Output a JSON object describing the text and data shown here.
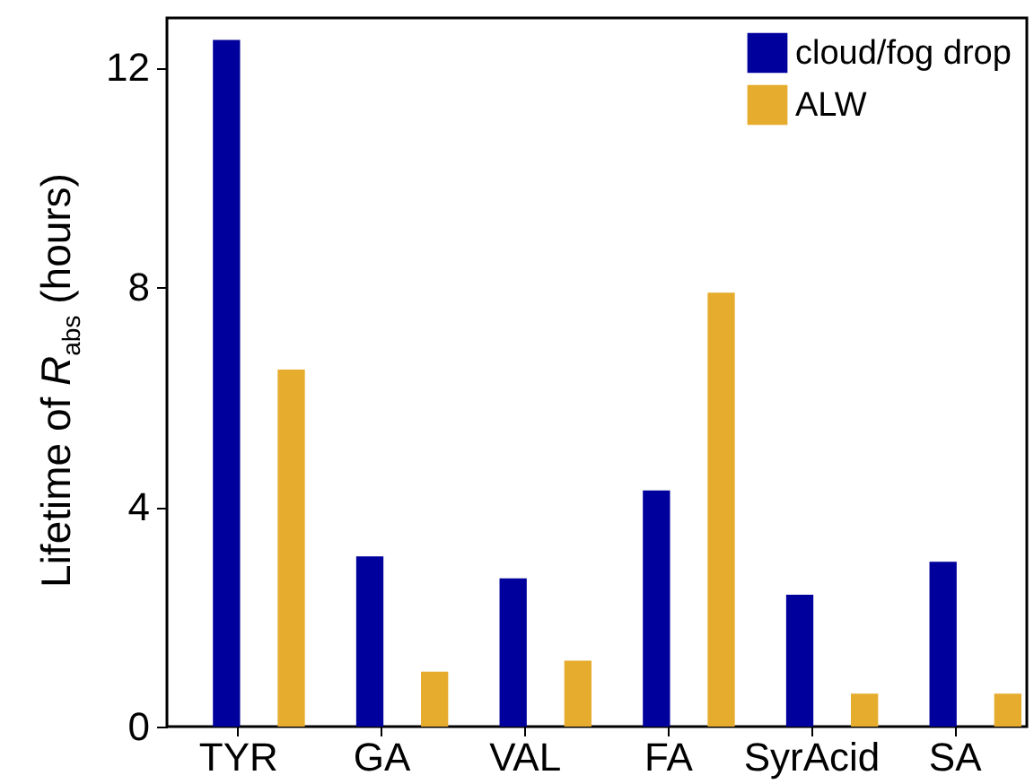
{
  "chart_data": {
    "type": "bar",
    "ylabel": "Lifetime of R$_{abs}$ (hours)",
    "categories": [
      "TYR",
      "GA",
      "VAL",
      "FA",
      "SyrAcid",
      "SA"
    ],
    "series": [
      {
        "name": "cloud/fog drop",
        "color": "#00009c",
        "values": [
          12.5,
          3.1,
          2.7,
          4.3,
          2.4,
          3.0
        ]
      },
      {
        "name": "ALW",
        "color": "#e6ac2e",
        "values": [
          6.5,
          1.0,
          1.2,
          7.9,
          0.6,
          0.6
        ]
      }
    ],
    "ylim": [
      0,
      12.9
    ],
    "yticks": [
      0,
      4,
      8,
      12
    ],
    "grid": false,
    "legend": "top right"
  }
}
